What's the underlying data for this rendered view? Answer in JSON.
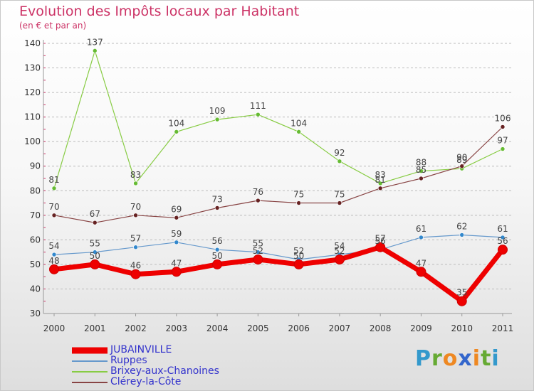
{
  "title": "Evolution des Impôts locaux par Habitant",
  "subtitle": "(en € et par an)",
  "brand": {
    "text": "Proxiti",
    "letters": [
      {
        "ch": "P",
        "color": "#3399cc"
      },
      {
        "ch": "r",
        "color": "#66aa33"
      },
      {
        "ch": "o",
        "color": "#ee8822"
      },
      {
        "ch": "x",
        "color": "#3366cc"
      },
      {
        "ch": "i",
        "color": "#ee8822"
      },
      {
        "ch": "t",
        "color": "#66aa33"
      },
      {
        "ch": "i",
        "color": "#3399cc"
      }
    ]
  },
  "chart_data": {
    "type": "line",
    "title": "Evolution des Impôts locaux par Habitant",
    "subtitle": "(en € et par an)",
    "xlabel": "",
    "ylabel": "",
    "categories": [
      "2000",
      "2001",
      "2002",
      "2003",
      "2004",
      "2005",
      "2006",
      "2007",
      "2008",
      "2009",
      "2010",
      "2011"
    ],
    "ylim": [
      30,
      140
    ],
    "yticks": [
      30,
      40,
      50,
      60,
      70,
      80,
      90,
      100,
      110,
      120,
      130,
      140
    ],
    "grid": "horizontal dashed",
    "legend_position": "bottom-left",
    "series": [
      {
        "name": "Brixey-aux-Chanoines",
        "color": "#88cc44",
        "marker": "#66bb33",
        "width": 1.2,
        "values": [
          81,
          137,
          83,
          104,
          109,
          111,
          104,
          92,
          83,
          88,
          89,
          97
        ]
      },
      {
        "name": "Clérey-la-Côte",
        "color": "#884444",
        "marker": "#662222",
        "width": 1.2,
        "values": [
          70,
          67,
          70,
          69,
          73,
          76,
          75,
          75,
          81,
          85,
          90,
          106
        ]
      },
      {
        "name": "Ruppes",
        "color": "#6699cc",
        "marker": "#3388cc",
        "width": 1.2,
        "values": [
          54,
          55,
          57,
          59,
          56,
          55,
          52,
          54,
          56,
          61,
          62,
          61
        ]
      },
      {
        "name": "JUBAINVILLE",
        "color": "#ee0000",
        "marker": "#ee0000",
        "width": 7,
        "values": [
          48,
          50,
          46,
          47,
          50,
          52,
          50,
          52,
          57,
          47,
          35,
          56
        ]
      }
    ],
    "legend_order": [
      "JUBAINVILLE",
      "Ruppes",
      "Brixey-aux-Chanoines",
      "Clérey-la-Côte"
    ]
  }
}
